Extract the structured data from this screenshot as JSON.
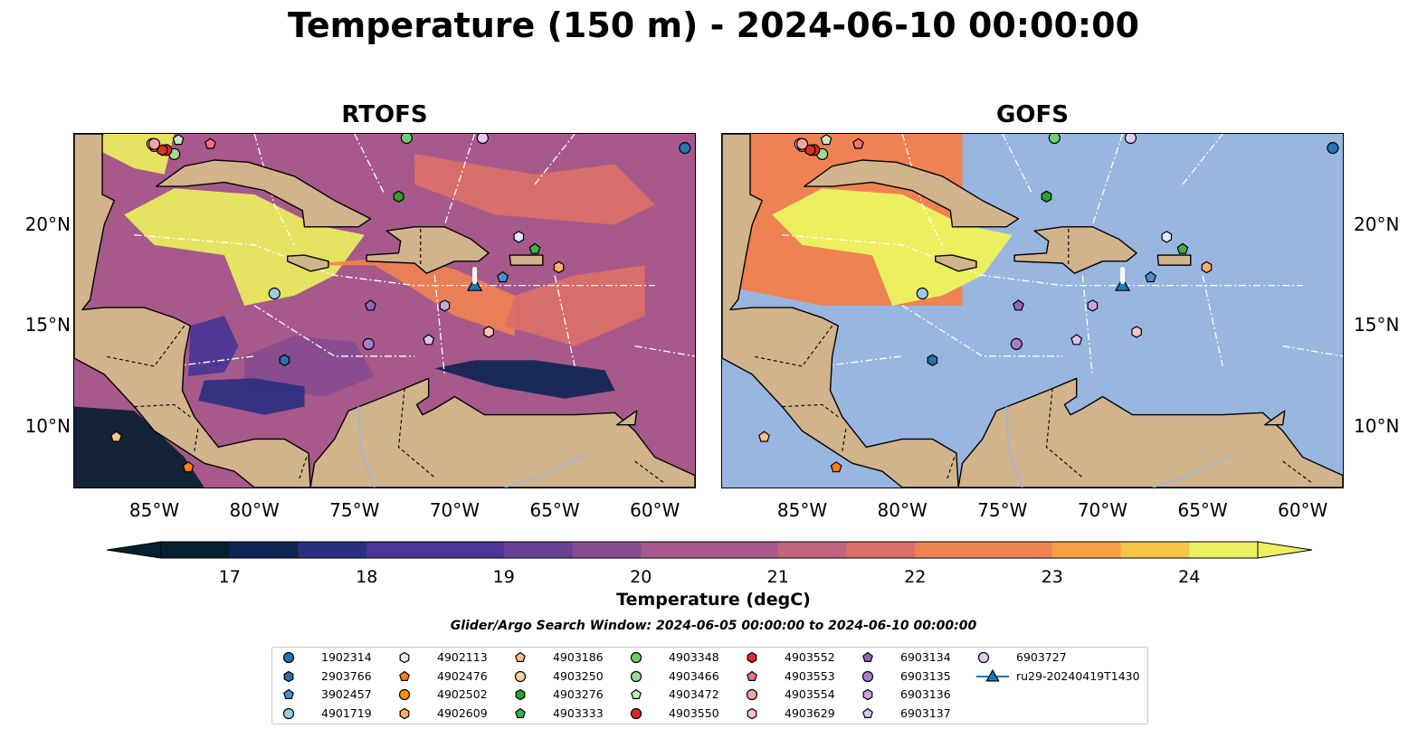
{
  "title": "Temperature (150 m) - 2024-06-10 00:00:00",
  "panels": [
    {
      "title": "RTOFS",
      "mode": "full"
    },
    {
      "title": "GOFS",
      "mode": "partial"
    }
  ],
  "axes": {
    "lon_range": [
      -89,
      -58
    ],
    "lat_range": [
      7,
      24.5
    ],
    "x_ticks": [
      "85°W",
      "80°W",
      "75°W",
      "70°W",
      "65°W",
      "60°W"
    ],
    "x_tick_values": [
      -85,
      -80,
      -75,
      -70,
      -65,
      -60
    ],
    "y_ticks": [
      "20°N",
      "15°N",
      "10°N"
    ],
    "y_tick_values": [
      20,
      15,
      10
    ]
  },
  "colorbar": {
    "label": "Temperature (degC)",
    "ticks": [
      "17",
      "18",
      "19",
      "20",
      "21",
      "22",
      "23",
      "24"
    ],
    "min": 16.5,
    "max": 24.5,
    "colormap": [
      "#05202f",
      "#0f2555",
      "#2a2f80",
      "#4b3596",
      "#6a3f96",
      "#874b8f",
      "#a6598a",
      "#c16480",
      "#db7068",
      "#ef8252",
      "#f89f45",
      "#f6c547",
      "#ebef60"
    ]
  },
  "search_window": "Glider/Argo Search Window: 2024-06-05 00:00:00 to 2024-06-10 00:00:00",
  "map_colors": {
    "land": "#d2b48c",
    "ocean": "#98b6e0"
  },
  "floats": [
    {
      "id": "1902314",
      "marker": "circle",
      "color": "#1f77b4",
      "lon": -58.5,
      "lat": 23.8
    },
    {
      "id": "2903766",
      "marker": "hexagon",
      "color": "#2e6fa8",
      "lon": -78.5,
      "lat": 13.3
    },
    {
      "id": "3902457",
      "marker": "pentagon",
      "color": "#4a90d0",
      "lon": -67.6,
      "lat": 17.4
    },
    {
      "id": "4901719",
      "marker": "circle",
      "color": "#9ecae1",
      "lon": -79.0,
      "lat": 16.6
    },
    {
      "id": "4902113",
      "marker": "hexagon",
      "color": "#deebf7",
      "lon": -66.8,
      "lat": 19.4
    },
    {
      "id": "4902476",
      "marker": "pentagon",
      "color": "#ff7f0e",
      "lon": -83.3,
      "lat": 8.0
    },
    {
      "id": "4902502",
      "marker": "circle",
      "color": "#ff8c1a",
      "lon": -85.0,
      "lat": 23.9
    },
    {
      "id": "4902609",
      "marker": "hexagon",
      "color": "#fdae6b",
      "lon": -64.8,
      "lat": 17.9
    },
    {
      "id": "4903186",
      "marker": "pentagon",
      "color": "#fdbf85",
      "lon": -86.9,
      "lat": 9.5
    },
    {
      "id": "4903250",
      "marker": "circle",
      "color": "#fdd0a2",
      "lon": -85.1,
      "lat": 24.0
    },
    {
      "id": "4903276",
      "marker": "hexagon",
      "color": "#2ca02c",
      "lon": -72.8,
      "lat": 21.4
    },
    {
      "id": "4903333",
      "marker": "pentagon",
      "color": "#3cb043",
      "lon": -66.0,
      "lat": 18.8
    },
    {
      "id": "4903348",
      "marker": "circle",
      "color": "#6fce6f",
      "lon": -72.4,
      "lat": 24.3
    },
    {
      "id": "4903466",
      "marker": "circle",
      "color": "#a1d99b",
      "lon": -84.0,
      "lat": 23.5
    },
    {
      "id": "4903472",
      "marker": "pentagon",
      "color": "#c7e9c0",
      "lon": -83.8,
      "lat": 24.2
    },
    {
      "id": "4903550",
      "marker": "circle",
      "color": "#d62728",
      "lon": -84.4,
      "lat": 23.7
    },
    {
      "id": "4903552",
      "marker": "hexagon",
      "color": "#de2d26",
      "lon": -84.6,
      "lat": 23.7
    },
    {
      "id": "4903553",
      "marker": "pentagon",
      "color": "#f0707a",
      "lon": -82.2,
      "lat": 24.0
    },
    {
      "id": "4903554",
      "marker": "circle",
      "color": "#f4a3a8",
      "lon": -85.0,
      "lat": 24.0
    },
    {
      "id": "4903629",
      "marker": "hexagon",
      "color": "#fcc5c0",
      "lon": -68.3,
      "lat": 14.7
    },
    {
      "id": "6903134",
      "marker": "pentagon",
      "color": "#9467bd",
      "lon": -74.2,
      "lat": 16.0
    },
    {
      "id": "6903135",
      "marker": "circle",
      "color": "#a87ccf",
      "lon": -74.3,
      "lat": 14.1
    },
    {
      "id": "6903136",
      "marker": "hexagon",
      "color": "#c7a6e0",
      "lon": -70.5,
      "lat": 16.0
    },
    {
      "id": "6903137",
      "marker": "pentagon",
      "color": "#dcc3f0",
      "lon": -71.3,
      "lat": 14.3
    },
    {
      "id": "6903727",
      "marker": "circle",
      "color": "#e6ccf5",
      "lon": -68.6,
      "lat": 24.3
    }
  ],
  "glider": {
    "id": "ru29-20240419T1430",
    "marker": "triangle",
    "color": "#1f77b4",
    "lon": -69.0,
    "lat": 17.0
  }
}
